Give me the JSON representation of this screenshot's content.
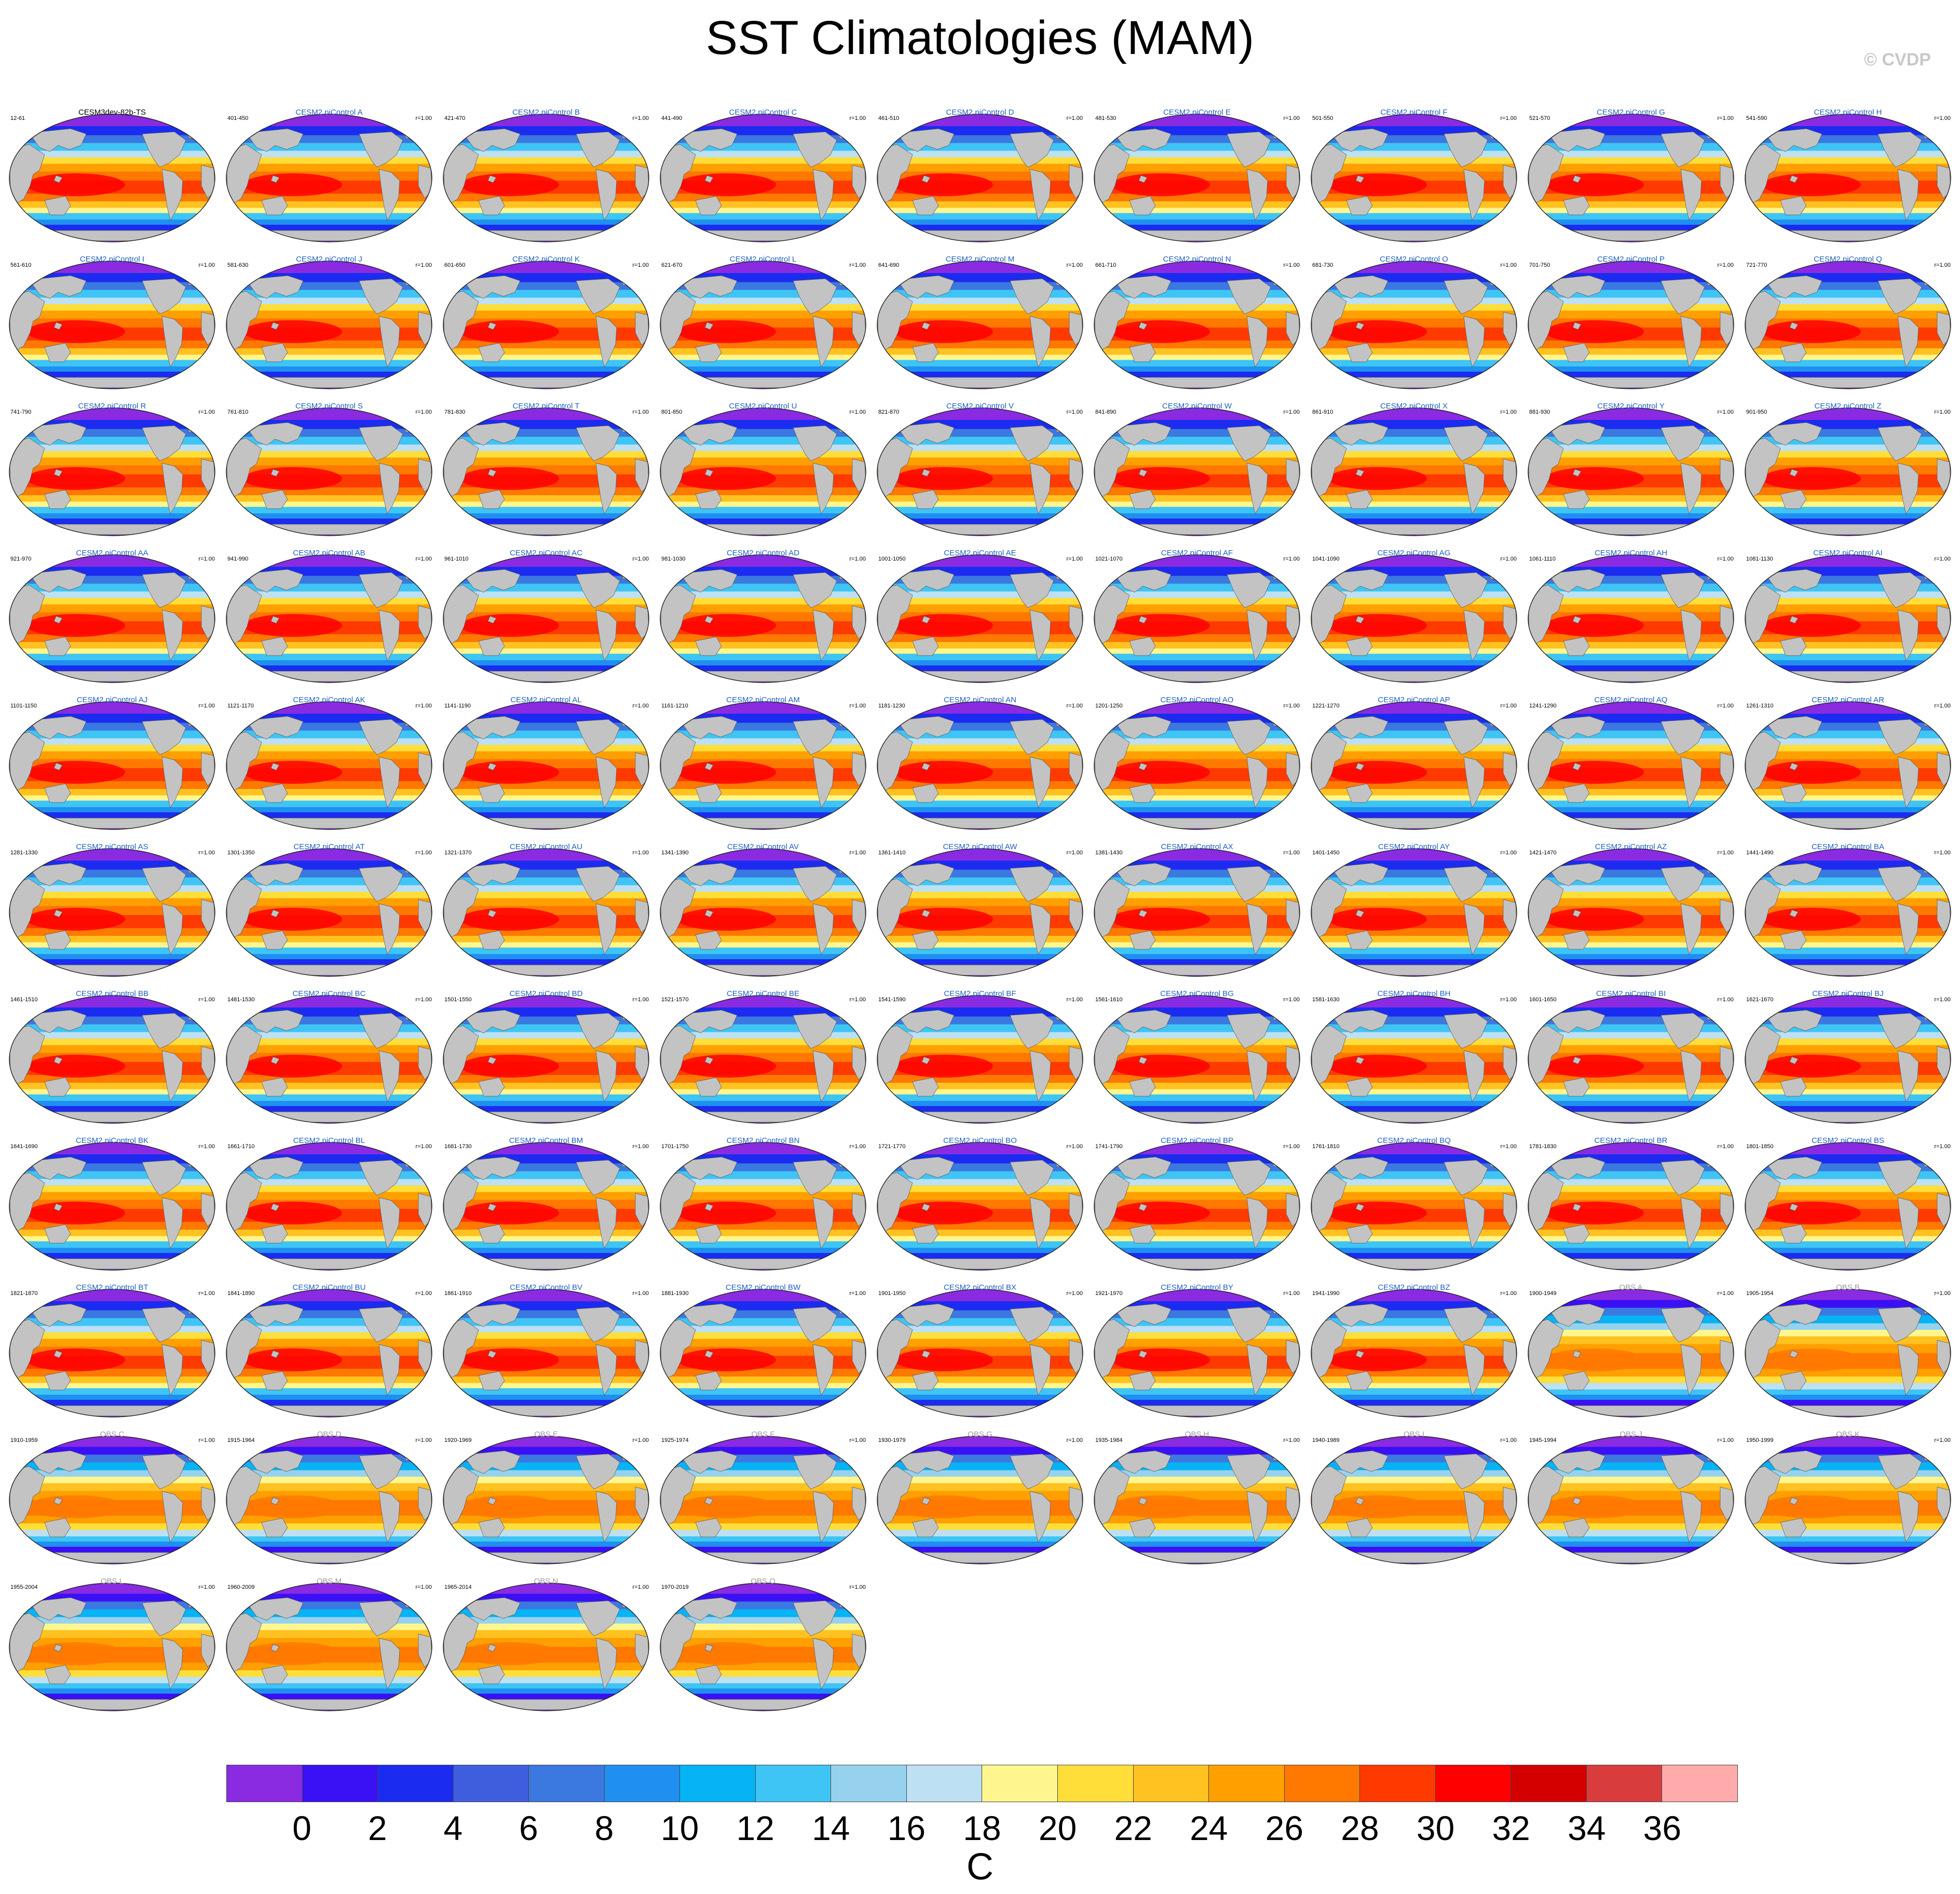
{
  "figure": {
    "title": "SST Climatologies (MAM)",
    "watermark": "© CVDP"
  },
  "colorbar": {
    "colors": [
      "#8a2be2",
      "#3a10f5",
      "#1b2cf0",
      "#3f5ede",
      "#3b78e0",
      "#1f8ff0",
      "#06b3f5",
      "#3ec5f5",
      "#96d2ee",
      "#bde0f3",
      "#fff68f",
      "#ffde3a",
      "#ffc220",
      "#ffa000",
      "#ff7800",
      "#ff3a00",
      "#ff0000",
      "#d40000",
      "#d93c3c",
      "#ffabab"
    ],
    "ticks": [
      "0",
      "2",
      "4",
      "6",
      "8",
      "10",
      "12",
      "14",
      "16",
      "18",
      "20",
      "22",
      "24",
      "26",
      "28",
      "30",
      "32",
      "34",
      "36"
    ],
    "units": "C"
  },
  "chart_data": {
    "type": "heatmap",
    "title": "SST Climatologies (MAM)",
    "variable": "SST",
    "season": "MAM",
    "units": "C",
    "levels": [
      0,
      2,
      4,
      6,
      8,
      10,
      12,
      14,
      16,
      18,
      20,
      22,
      24,
      26,
      28,
      30,
      32,
      34,
      36
    ],
    "panels": [
      {
        "name": "CESM3dev-82b-TS",
        "years": "12-61",
        "r": ""
      },
      {
        "name": "CESM2 piControl A",
        "years": "401-450",
        "r": "r=1.00"
      },
      {
        "name": "CESM2 piControl B",
        "years": "421-470",
        "r": "r=1.00"
      },
      {
        "name": "CESM2 piControl C",
        "years": "441-490",
        "r": "r=1.00"
      },
      {
        "name": "CESM2 piControl D",
        "years": "461-510",
        "r": "r=1.00"
      },
      {
        "name": "CESM2 piControl E",
        "years": "481-530",
        "r": "r=1.00"
      },
      {
        "name": "CESM2 piControl F",
        "years": "501-550",
        "r": "r=1.00"
      },
      {
        "name": "CESM2 piControl G",
        "years": "521-570",
        "r": "r=1.00"
      },
      {
        "name": "CESM2 piControl H",
        "years": "541-590",
        "r": "r=1.00"
      },
      {
        "name": "CESM2 piControl I",
        "years": "561-610",
        "r": "r=1.00"
      },
      {
        "name": "CESM2 piControl J",
        "years": "581-630",
        "r": "r=1.00"
      },
      {
        "name": "CESM2 piControl K",
        "years": "601-650",
        "r": "r=1.00"
      },
      {
        "name": "CESM2 piControl L",
        "years": "621-670",
        "r": "r=1.00"
      },
      {
        "name": "CESM2 piControl M",
        "years": "641-690",
        "r": "r=1.00"
      },
      {
        "name": "CESM2 piControl N",
        "years": "661-710",
        "r": "r=1.00"
      },
      {
        "name": "CESM2 piControl O",
        "years": "681-730",
        "r": "r=1.00"
      },
      {
        "name": "CESM2 piControl P",
        "years": "701-750",
        "r": "r=1.00"
      },
      {
        "name": "CESM2 piControl Q",
        "years": "721-770",
        "r": "r=1.00"
      },
      {
        "name": "CESM2 piControl R",
        "years": "741-790",
        "r": "r=1.00"
      },
      {
        "name": "CESM2 piControl S",
        "years": "761-810",
        "r": "r=1.00"
      },
      {
        "name": "CESM2 piControl T",
        "years": "781-830",
        "r": "r=1.00"
      },
      {
        "name": "CESM2 piControl U",
        "years": "801-850",
        "r": "r=1.00"
      },
      {
        "name": "CESM2 piControl V",
        "years": "821-870",
        "r": "r=1.00"
      },
      {
        "name": "CESM2 piControl W",
        "years": "841-890",
        "r": "r=1.00"
      },
      {
        "name": "CESM2 piControl X",
        "years": "861-910",
        "r": "r=1.00"
      },
      {
        "name": "CESM2 piControl Y",
        "years": "881-930",
        "r": "r=1.00"
      },
      {
        "name": "CESM2 piControl Z",
        "years": "901-950",
        "r": "r=1.00"
      },
      {
        "name": "CESM2 piControl AA",
        "years": "921-970",
        "r": "r=1.00"
      },
      {
        "name": "CESM2 piControl AB",
        "years": "941-990",
        "r": "r=1.00"
      },
      {
        "name": "CESM2 piControl AC",
        "years": "961-1010",
        "r": "r=1.00"
      },
      {
        "name": "CESM2 piControl AD",
        "years": "981-1030",
        "r": "r=1.00"
      },
      {
        "name": "CESM2 piControl AE",
        "years": "1001-1050",
        "r": "r=1.00"
      },
      {
        "name": "CESM2 piControl AF",
        "years": "1021-1070",
        "r": "r=1.00"
      },
      {
        "name": "CESM2 piControl AG",
        "years": "1041-1090",
        "r": "r=1.00"
      },
      {
        "name": "CESM2 piControl AH",
        "years": "1061-1110",
        "r": "r=1.00"
      },
      {
        "name": "CESM2 piControl AI",
        "years": "1081-1130",
        "r": "r=1.00"
      },
      {
        "name": "CESM2 piControl AJ",
        "years": "1101-1150",
        "r": "r=1.00"
      },
      {
        "name": "CESM2 piControl AK",
        "years": "1121-1170",
        "r": "r=1.00"
      },
      {
        "name": "CESM2 piControl AL",
        "years": "1141-1190",
        "r": "r=1.00"
      },
      {
        "name": "CESM2 piControl AM",
        "years": "1161-1210",
        "r": "r=1.00"
      },
      {
        "name": "CESM2 piControl AN",
        "years": "1181-1230",
        "r": "r=1.00"
      },
      {
        "name": "CESM2 piControl AO",
        "years": "1201-1250",
        "r": "r=1.00"
      },
      {
        "name": "CESM2 piControl AP",
        "years": "1221-1270",
        "r": "r=1.00"
      },
      {
        "name": "CESM2 piControl AQ",
        "years": "1241-1290",
        "r": "r=1.00"
      },
      {
        "name": "CESM2 piControl AR",
        "years": "1261-1310",
        "r": "r=1.00"
      },
      {
        "name": "CESM2 piControl AS",
        "years": "1281-1330",
        "r": "r=1.00"
      },
      {
        "name": "CESM2 piControl AT",
        "years": "1301-1350",
        "r": "r=1.00"
      },
      {
        "name": "CESM2 piControl AU",
        "years": "1321-1370",
        "r": "r=1.00"
      },
      {
        "name": "CESM2 piControl AV",
        "years": "1341-1390",
        "r": "r=1.00"
      },
      {
        "name": "CESM2 piControl AW",
        "years": "1361-1410",
        "r": "r=1.00"
      },
      {
        "name": "CESM2 piControl AX",
        "years": "1381-1430",
        "r": "r=1.00"
      },
      {
        "name": "CESM2 piControl AY",
        "years": "1401-1450",
        "r": "r=1.00"
      },
      {
        "name": "CESM2 piControl AZ",
        "years": "1421-1470",
        "r": "r=1.00"
      },
      {
        "name": "CESM2 piControl BA",
        "years": "1441-1490",
        "r": "r=1.00"
      },
      {
        "name": "CESM2 piControl BB",
        "years": "1461-1510",
        "r": "r=1.00"
      },
      {
        "name": "CESM2 piControl BC",
        "years": "1481-1530",
        "r": "r=1.00"
      },
      {
        "name": "CESM2 piControl BD",
        "years": "1501-1550",
        "r": "r=1.00"
      },
      {
        "name": "CESM2 piControl BE",
        "years": "1521-1570",
        "r": "r=1.00"
      },
      {
        "name": "CESM2 piControl BF",
        "years": "1541-1590",
        "r": "r=1.00"
      },
      {
        "name": "CESM2 piControl BG",
        "years": "1561-1610",
        "r": "r=1.00"
      },
      {
        "name": "CESM2 piControl BH",
        "years": "1581-1630",
        "r": "r=1.00"
      },
      {
        "name": "CESM2 piControl BI",
        "years": "1601-1650",
        "r": "r=1.00"
      },
      {
        "name": "CESM2 piControl BJ",
        "years": "1621-1670",
        "r": "r=1.00"
      },
      {
        "name": "CESM2 piControl BK",
        "years": "1641-1690",
        "r": "r=1.00"
      },
      {
        "name": "CESM2 piControl BL",
        "years": "1661-1710",
        "r": "r=1.00"
      },
      {
        "name": "CESM2 piControl BM",
        "years": "1681-1730",
        "r": "r=1.00"
      },
      {
        "name": "CESM2 piControl BN",
        "years": "1701-1750",
        "r": "r=1.00"
      },
      {
        "name": "CESM2 piControl BO",
        "years": "1721-1770",
        "r": "r=1.00"
      },
      {
        "name": "CESM2 piControl BP",
        "years": "1741-1790",
        "r": "r=1.00"
      },
      {
        "name": "CESM2 piControl BQ",
        "years": "1761-1810",
        "r": "r=1.00"
      },
      {
        "name": "CESM2 piControl BR",
        "years": "1781-1830",
        "r": "r=1.00"
      },
      {
        "name": "CESM2 piControl BS",
        "years": "1801-1850",
        "r": "r=1.00"
      },
      {
        "name": "CESM2 piControl BT",
        "years": "1821-1870",
        "r": "r=1.00"
      },
      {
        "name": "CESM2 piControl BU",
        "years": "1841-1890",
        "r": "r=1.00"
      },
      {
        "name": "CESM2 piControl BV",
        "years": "1861-1910",
        "r": "r=1.00"
      },
      {
        "name": "CESM2 piControl BW",
        "years": "1881-1930",
        "r": "r=1.00"
      },
      {
        "name": "CESM2 piControl BX",
        "years": "1901-1950",
        "r": "r=1.00"
      },
      {
        "name": "CESM2 piControl BY",
        "years": "1921-1970",
        "r": "r=1.00"
      },
      {
        "name": "CESM2 piControl BZ",
        "years": "1941-1990",
        "r": "r=1.00"
      },
      {
        "name": "OBS A",
        "years": "1900-1949",
        "r": "r=1.00",
        "obs": true
      },
      {
        "name": "OBS B",
        "years": "1905-1954",
        "r": "r=1.00",
        "obs": true
      },
      {
        "name": "OBS C",
        "years": "1910-1959",
        "r": "r=1.00",
        "obs": true
      },
      {
        "name": "OBS D",
        "years": "1915-1964",
        "r": "r=1.00",
        "obs": true
      },
      {
        "name": "OBS E",
        "years": "1920-1969",
        "r": "r=1.00",
        "obs": true
      },
      {
        "name": "OBS F",
        "years": "1925-1974",
        "r": "r=1.00",
        "obs": true
      },
      {
        "name": "OBS G",
        "years": "1930-1979",
        "r": "r=1.00",
        "obs": true
      },
      {
        "name": "OBS H",
        "years": "1935-1984",
        "r": "r=1.00",
        "obs": true
      },
      {
        "name": "OBS I",
        "years": "1940-1989",
        "r": "r=1.00",
        "obs": true
      },
      {
        "name": "OBS J",
        "years": "1945-1994",
        "r": "r=1.00",
        "obs": true
      },
      {
        "name": "OBS K",
        "years": "1950-1999",
        "r": "r=1.00",
        "obs": true
      },
      {
        "name": "OBS L",
        "years": "1955-2004",
        "r": "r=1.00",
        "obs": true
      },
      {
        "name": "OBS M",
        "years": "1960-2009",
        "r": "r=1.00",
        "obs": true
      },
      {
        "name": "OBS N",
        "years": "1965-2014",
        "r": "r=1.00",
        "obs": true
      },
      {
        "name": "OBS O",
        "years": "1970-2019",
        "r": "r=1.00",
        "obs": true
      }
    ]
  }
}
